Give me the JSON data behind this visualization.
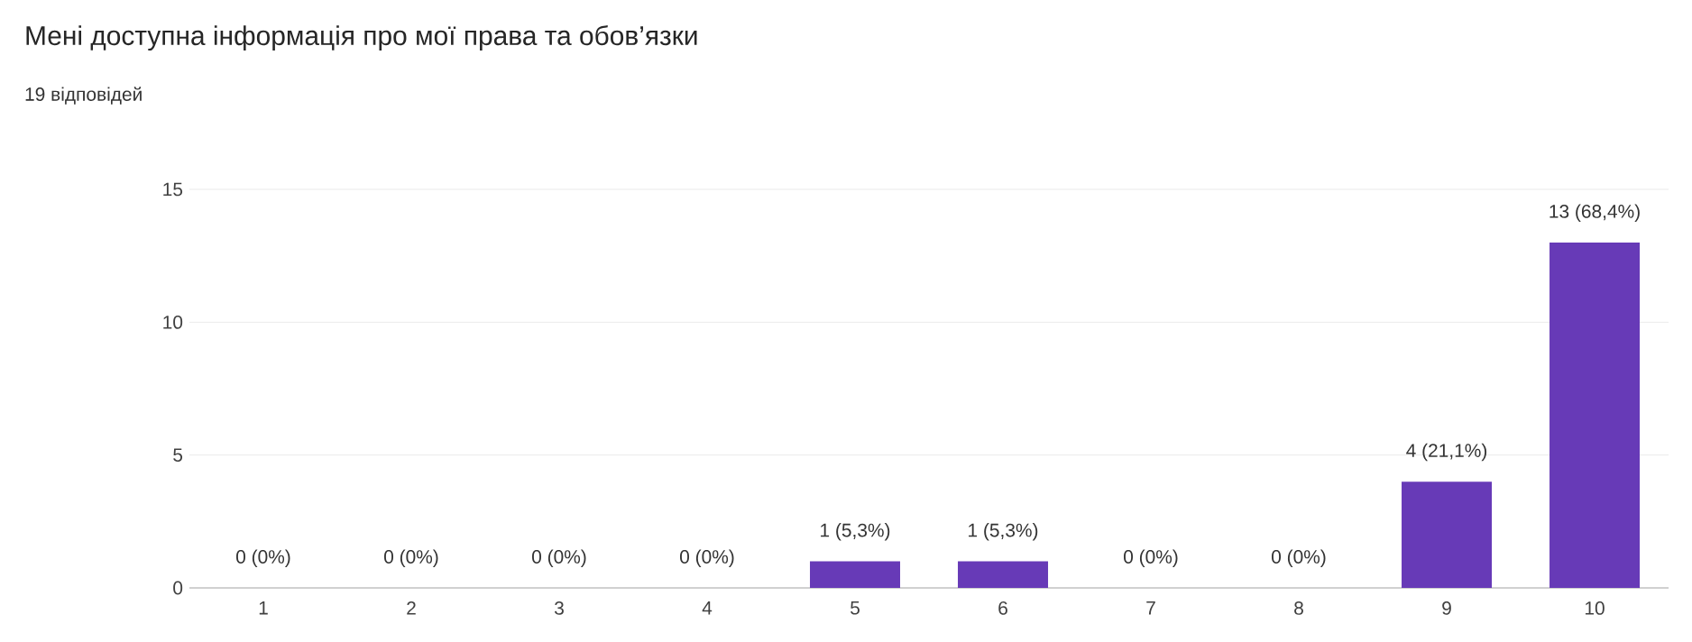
{
  "chart_data": {
    "type": "bar",
    "title": "Мені доступна інформація про мої права та обов’язки",
    "subtitle": "19 відповідей",
    "categories": [
      "1",
      "2",
      "3",
      "4",
      "5",
      "6",
      "7",
      "8",
      "9",
      "10"
    ],
    "values": [
      0,
      0,
      0,
      0,
      1,
      1,
      0,
      0,
      4,
      13
    ],
    "value_labels": [
      "0 (0%)",
      "0 (0%)",
      "0 (0%)",
      "0 (0%)",
      "1 (5,3%)",
      "1 (5,3%)",
      "0 (0%)",
      "0 (0%)",
      "4 (21,1%)",
      "13 (68,4%)"
    ],
    "color": "#673ab7",
    "ylim": [
      0,
      15
    ],
    "yticks": [
      0,
      5,
      10,
      15
    ],
    "grid": "y"
  }
}
